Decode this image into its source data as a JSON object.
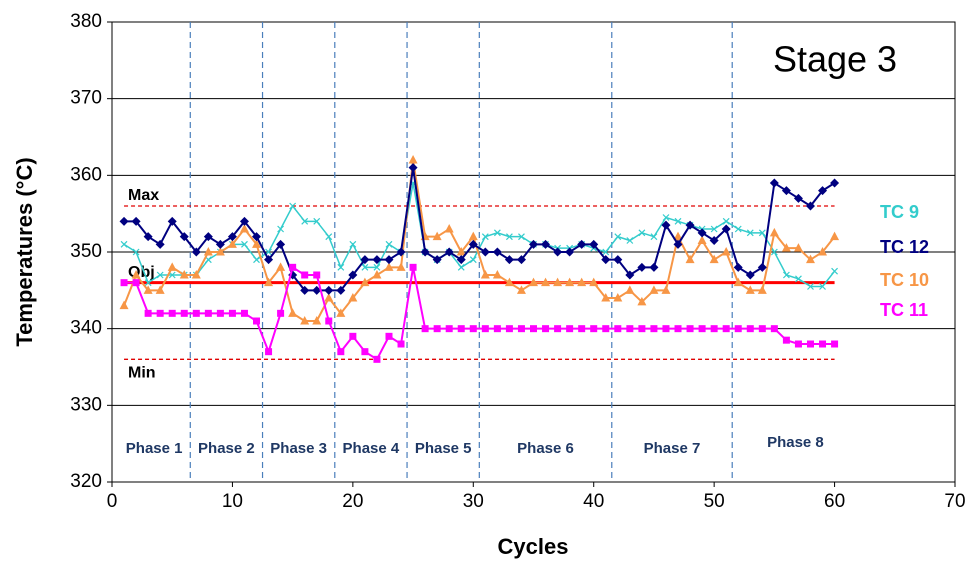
{
  "chart_data": {
    "type": "line",
    "annotation": "Stage 3",
    "xlabel": "Cycles",
    "ylabel": "Temperatures (°C)",
    "xlim": [
      0,
      70
    ],
    "xticks": [
      0,
      10,
      20,
      30,
      40,
      50,
      60,
      70
    ],
    "ylim": [
      320,
      380
    ],
    "yticks": [
      320,
      330,
      340,
      350,
      360,
      370,
      380
    ],
    "grid": true,
    "x": [
      1,
      2,
      3,
      4,
      5,
      6,
      7,
      8,
      9,
      10,
      11,
      12,
      13,
      14,
      15,
      16,
      17,
      18,
      19,
      20,
      21,
      22,
      23,
      24,
      25,
      26,
      27,
      28,
      29,
      30,
      31,
      32,
      33,
      34,
      35,
      36,
      37,
      38,
      39,
      40,
      41,
      42,
      43,
      44,
      45,
      46,
      47,
      48,
      49,
      50,
      51,
      52,
      53,
      54,
      55,
      56,
      57,
      58,
      59,
      60
    ],
    "series": [
      {
        "name": "TC 9",
        "color": "#33cccc",
        "marker": "x",
        "values": [
          351,
          350,
          346,
          347,
          347,
          347,
          347,
          349,
          350,
          351,
          351,
          349,
          350,
          353,
          356,
          354,
          354,
          352,
          348,
          351,
          348,
          348,
          351,
          350,
          359,
          350,
          349,
          350,
          348,
          349,
          352,
          352.5,
          352,
          352,
          351,
          351,
          350.5,
          350.5,
          351,
          350.5,
          350,
          352,
          351.5,
          352.5,
          352,
          354.5,
          354,
          353.5,
          353,
          353,
          354,
          353,
          352.5,
          352.5,
          350,
          347,
          346.5,
          345.5,
          345.5,
          347.5
        ]
      },
      {
        "name": "TC 12",
        "color": "#000080",
        "marker": "diamond",
        "values": [
          354,
          354,
          352,
          351,
          354,
          352,
          350,
          352,
          351,
          352,
          354,
          352,
          349,
          351,
          347,
          345,
          345,
          345,
          345,
          347,
          349,
          349,
          349,
          350,
          361,
          350,
          349,
          350,
          349,
          351,
          350,
          350,
          349,
          349,
          351,
          351,
          350,
          350,
          351,
          351,
          349,
          349,
          347,
          348,
          348,
          353.5,
          351,
          353.5,
          352.5,
          351.5,
          353,
          348,
          347,
          348,
          359,
          358,
          357,
          356,
          358,
          359
        ]
      },
      {
        "name": "TC 10",
        "color": "#f79646",
        "marker": "triangle",
        "values": [
          343,
          347,
          345,
          345,
          348,
          347,
          347,
          350,
          350,
          351,
          353,
          351,
          346,
          348,
          342,
          341,
          341,
          344,
          342,
          344,
          346,
          347,
          348,
          348,
          362,
          352,
          352,
          353,
          350,
          352,
          347,
          347,
          346,
          345,
          346,
          346,
          346,
          346,
          346,
          346,
          344,
          344,
          345,
          343.5,
          345,
          345,
          352,
          349,
          351.5,
          349,
          350,
          346,
          345,
          345,
          352.5,
          350.5,
          350.5,
          349,
          350,
          352
        ]
      },
      {
        "name": "TC 11",
        "color": "#ff00ff",
        "marker": "square",
        "values": [
          346,
          346,
          342,
          342,
          342,
          342,
          342,
          342,
          342,
          342,
          342,
          341,
          337,
          342,
          348,
          347,
          347,
          341,
          337,
          339,
          337,
          336,
          339,
          338,
          348,
          340,
          340,
          340,
          340,
          340,
          340,
          340,
          340,
          340,
          340,
          340,
          340,
          340,
          340,
          340,
          340,
          340,
          340,
          340,
          340,
          340,
          340,
          340,
          340,
          340,
          340,
          340,
          340,
          340,
          340,
          338.5,
          338,
          338,
          338,
          338
        ]
      }
    ],
    "reference_lines": [
      {
        "label": "Max",
        "value": 356,
        "color": "#e00000",
        "style": "dashed"
      },
      {
        "label": "Obj",
        "value": 346,
        "color": "#ff0000",
        "style": "solid"
      },
      {
        "label": "Min",
        "value": 336,
        "color": "#e00000",
        "style": "dashed"
      }
    ],
    "phase_boundaries": [
      6.5,
      12.5,
      18.5,
      24.5,
      30.5,
      41.5,
      51.5
    ],
    "phase_labels": [
      "Phase 1",
      "Phase 2",
      "Phase 3",
      "Phase 4",
      "Phase 5",
      "Phase 6",
      "Phase 7",
      "Phase 8"
    ]
  }
}
